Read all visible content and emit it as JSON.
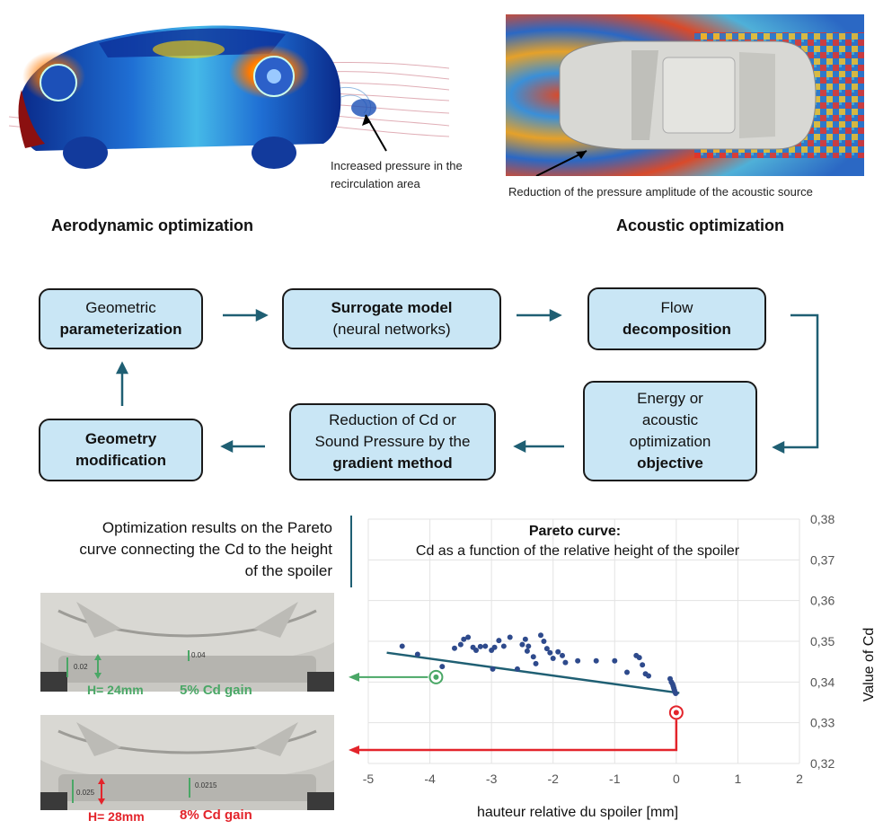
{
  "top": {
    "aero_annotation": "Increased pressure in the recirculation area",
    "aero_title": "Aerodynamic optimization",
    "acoustic_annotation": "Reduction of the pressure amplitude of the acoustic source",
    "acoustic_title": "Acoustic optimization"
  },
  "flow": {
    "geom_param": {
      "line1": "Geometric",
      "line2": "parameterization"
    },
    "surrogate": {
      "line1": "Surrogate model",
      "line2": "(neural networks)"
    },
    "flow_decomp": {
      "line1": "Flow",
      "line2": "decomposition"
    },
    "objective": {
      "line1": "Energy or",
      "line2": "acoustic",
      "line3": "optimization",
      "line4": "objective"
    },
    "reduction": {
      "line1": "Reduction of Cd or",
      "line2": "Sound Pressure by the",
      "line3": "gradient method"
    },
    "geom_mod": {
      "line1": "Geometry",
      "line2": "modification"
    }
  },
  "results": {
    "description": "Optimization results on the Pareto curve connecting the Cd to the height of the spoiler",
    "car1": {
      "h_label": "H= 24mm",
      "gain": "5% Cd gain",
      "tag_left": "0.02",
      "tag_right": "0.04"
    },
    "car2": {
      "h_label": "H= 28mm",
      "gain": "8% Cd gain",
      "tag_left": "0.025",
      "tag_right": "0.0215"
    }
  },
  "chart_data": {
    "type": "scatter",
    "title": "Pareto curve:",
    "subtitle": "Cd as a function of the relative height of the spoiler",
    "xlabel": "hauteur relative du spoiler [mm]",
    "ylabel": "Value of Cd",
    "xlim": [
      -5,
      2
    ],
    "ylim": [
      0.32,
      0.38
    ],
    "xticks": [
      "-5",
      "-4",
      "-3",
      "-2",
      "-1",
      "0",
      "1",
      "2"
    ],
    "yticks": [
      "0,32",
      "0,33",
      "0,34",
      "0,35",
      "0,36",
      "0,37",
      "0,38"
    ],
    "grid": true,
    "points": [
      [
        -4.45,
        0.3488
      ],
      [
        -4.2,
        0.3468
      ],
      [
        -3.8,
        0.3438
      ],
      [
        -3.6,
        0.3483
      ],
      [
        -3.5,
        0.3492
      ],
      [
        -3.45,
        0.3505
      ],
      [
        -3.38,
        0.351
      ],
      [
        -3.3,
        0.3485
      ],
      [
        -3.25,
        0.3478
      ],
      [
        -3.18,
        0.3487
      ],
      [
        -3.1,
        0.3488
      ],
      [
        -3.0,
        0.3478
      ],
      [
        -2.98,
        0.3432
      ],
      [
        -2.95,
        0.3485
      ],
      [
        -2.88,
        0.3502
      ],
      [
        -2.8,
        0.3488
      ],
      [
        -2.7,
        0.351
      ],
      [
        -2.58,
        0.3432
      ],
      [
        -2.5,
        0.3492
      ],
      [
        -2.45,
        0.3505
      ],
      [
        -2.42,
        0.3476
      ],
      [
        -2.4,
        0.3488
      ],
      [
        -2.32,
        0.3462
      ],
      [
        -2.28,
        0.3445
      ],
      [
        -2.2,
        0.3515
      ],
      [
        -2.15,
        0.35
      ],
      [
        -2.1,
        0.3482
      ],
      [
        -2.05,
        0.3472
      ],
      [
        -2.0,
        0.3458
      ],
      [
        -1.92,
        0.3474
      ],
      [
        -1.85,
        0.3465
      ],
      [
        -1.8,
        0.3448
      ],
      [
        -1.6,
        0.3452
      ],
      [
        -1.3,
        0.3452
      ],
      [
        -1.0,
        0.3452
      ],
      [
        -0.8,
        0.3424
      ],
      [
        -0.65,
        0.3465
      ],
      [
        -0.6,
        0.346
      ],
      [
        -0.55,
        0.3442
      ],
      [
        -0.5,
        0.342
      ],
      [
        -0.45,
        0.3415
      ],
      [
        -0.1,
        0.3408
      ],
      [
        -0.08,
        0.34
      ],
      [
        -0.06,
        0.3395
      ],
      [
        -0.05,
        0.339
      ],
      [
        -0.04,
        0.3385
      ],
      [
        -0.03,
        0.338
      ],
      [
        -0.02,
        0.3375
      ],
      [
        -0.01,
        0.3372
      ]
    ],
    "trend_line": [
      [
        -4.7,
        0.3472
      ],
      [
        0.05,
        0.3373
      ]
    ],
    "highlight_green": [
      -3.9,
      0.3412
    ],
    "highlight_red": [
      0.0,
      0.3325
    ]
  },
  "colors": {
    "box_fill": "#c9e6f5",
    "arrow": "#1f5f73",
    "green": "#4aa766",
    "red": "#e3242b",
    "dot": "#2e4a8c"
  }
}
